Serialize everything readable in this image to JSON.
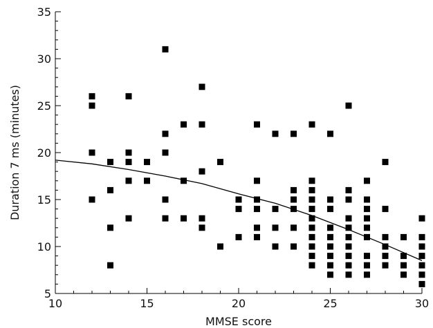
{
  "chart_data": {
    "type": "scatter",
    "title": "",
    "xlabel": "MMSE score",
    "ylabel": "Duration 7 ms (minutes)",
    "xlim": [
      10,
      30
    ],
    "ylim": [
      5,
      35
    ],
    "x_ticks_major": [
      10,
      15,
      20,
      25,
      30
    ],
    "y_ticks_major": [
      5,
      10,
      15,
      20,
      25,
      30,
      35
    ],
    "grid": false,
    "legend": "none",
    "marker_color": "#000000",
    "series": [
      {
        "points": [
          [
            12,
            26
          ],
          [
            12,
            25
          ],
          [
            12,
            20
          ],
          [
            12,
            15
          ],
          [
            13,
            19
          ],
          [
            13,
            16
          ],
          [
            13,
            12
          ],
          [
            13,
            8
          ],
          [
            14,
            26
          ],
          [
            14,
            20
          ],
          [
            14,
            19
          ],
          [
            14,
            17
          ],
          [
            14,
            13
          ],
          [
            15,
            19
          ],
          [
            15,
            17
          ],
          [
            16,
            31
          ],
          [
            16,
            22
          ],
          [
            16,
            20
          ],
          [
            16,
            15
          ],
          [
            16,
            13
          ],
          [
            17,
            23
          ],
          [
            17,
            17
          ],
          [
            17,
            13
          ],
          [
            18,
            27
          ],
          [
            18,
            23
          ],
          [
            18,
            18
          ],
          [
            18,
            13
          ],
          [
            18,
            12
          ],
          [
            19,
            19
          ],
          [
            19,
            10
          ],
          [
            20,
            15
          ],
          [
            20,
            14
          ],
          [
            20,
            11
          ],
          [
            21,
            23
          ],
          [
            21,
            17
          ],
          [
            21,
            15
          ],
          [
            21,
            14
          ],
          [
            21,
            12
          ],
          [
            21,
            11
          ],
          [
            22,
            22
          ],
          [
            22,
            14
          ],
          [
            22,
            12
          ],
          [
            22,
            10
          ],
          [
            23,
            22
          ],
          [
            23,
            16
          ],
          [
            23,
            15
          ],
          [
            23,
            14
          ],
          [
            23,
            12
          ],
          [
            23,
            10
          ],
          [
            24,
            23
          ],
          [
            24,
            17
          ],
          [
            24,
            16
          ],
          [
            24,
            15
          ],
          [
            24,
            14
          ],
          [
            24,
            13
          ],
          [
            24,
            12
          ],
          [
            24,
            11
          ],
          [
            24,
            10
          ],
          [
            24,
            9
          ],
          [
            24,
            8
          ],
          [
            25,
            22
          ],
          [
            25,
            15
          ],
          [
            25,
            14
          ],
          [
            25,
            12
          ],
          [
            25,
            11
          ],
          [
            25,
            10
          ],
          [
            25,
            9
          ],
          [
            25,
            8
          ],
          [
            25,
            7
          ],
          [
            26,
            25
          ],
          [
            26,
            16
          ],
          [
            26,
            15
          ],
          [
            26,
            13
          ],
          [
            26,
            12
          ],
          [
            26,
            11
          ],
          [
            26,
            10
          ],
          [
            26,
            9
          ],
          [
            26,
            8
          ],
          [
            26,
            7
          ],
          [
            27,
            17
          ],
          [
            27,
            15
          ],
          [
            27,
            14
          ],
          [
            27,
            13
          ],
          [
            27,
            12
          ],
          [
            27,
            11
          ],
          [
            27,
            9
          ],
          [
            27,
            8
          ],
          [
            27,
            7
          ],
          [
            28,
            19
          ],
          [
            28,
            14
          ],
          [
            28,
            11
          ],
          [
            28,
            10
          ],
          [
            28,
            9
          ],
          [
            28,
            8
          ],
          [
            29,
            11
          ],
          [
            29,
            9
          ],
          [
            29,
            8
          ],
          [
            29,
            7
          ],
          [
            30,
            13
          ],
          [
            30,
            11
          ],
          [
            30,
            10
          ],
          [
            30,
            9
          ],
          [
            30,
            8
          ],
          [
            30,
            7
          ],
          [
            30,
            6
          ]
        ]
      }
    ],
    "trend_line": [
      [
        10,
        19.2
      ],
      [
        12,
        18.8
      ],
      [
        14,
        18.2
      ],
      [
        16,
        17.5
      ],
      [
        18,
        16.7
      ],
      [
        20,
        15.6
      ],
      [
        22,
        14.6
      ],
      [
        24,
        13.3
      ],
      [
        26,
        11.8
      ],
      [
        28,
        10.2
      ],
      [
        30,
        8.5
      ]
    ]
  }
}
